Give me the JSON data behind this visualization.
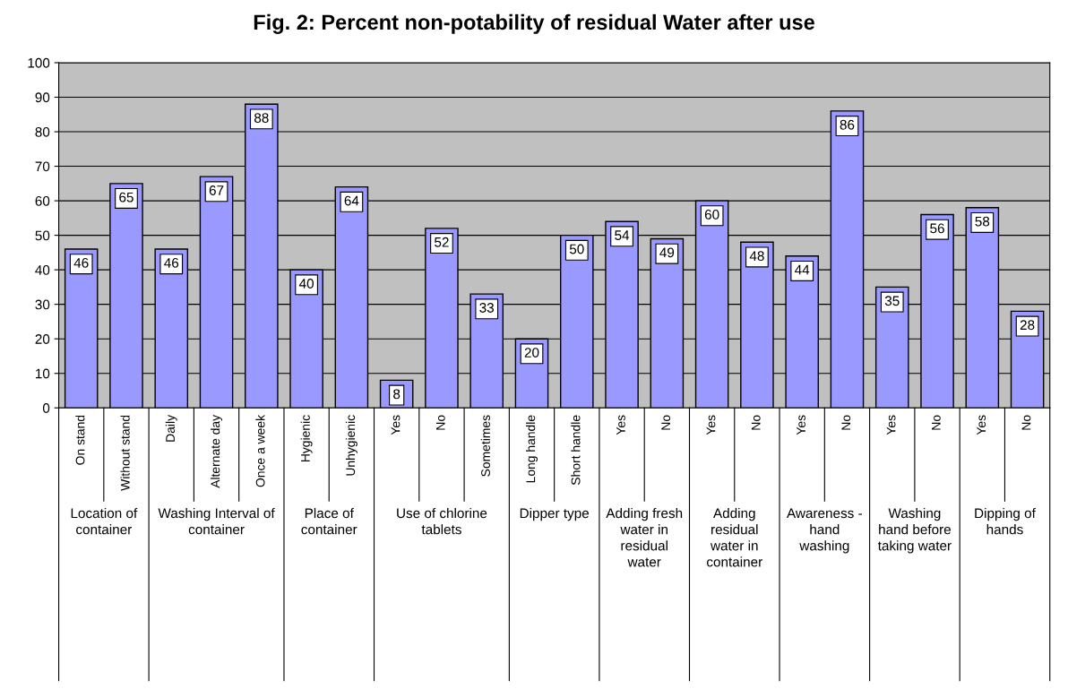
{
  "chart_data": {
    "type": "bar",
    "title": "Fig. 2: Percent non-potability of residual Water after use",
    "categories": [
      "On stand",
      "Without stand",
      "Daily",
      "Alternate day",
      "Once a week",
      "Hygienic",
      "Unhygienic",
      "Yes",
      "No",
      "Sometimes",
      "Long handle",
      "Short handle",
      "Yes",
      "No",
      "Yes",
      "No",
      "Yes",
      "No",
      "Yes",
      "No",
      "Yes",
      "No"
    ],
    "values": [
      46,
      65,
      46,
      67,
      88,
      40,
      64,
      8,
      52,
      33,
      20,
      50,
      54,
      49,
      60,
      48,
      44,
      86,
      35,
      56,
      58,
      28
    ],
    "color": "#9999ff",
    "ylim": [
      0,
      100
    ],
    "yticks": [
      0,
      10,
      20,
      30,
      40,
      50,
      60,
      70,
      80,
      90,
      100
    ],
    "grid": "y",
    "data_labels": true,
    "annotations": [
      "Location of\ncontainer",
      "Washing Interval of\ncontainer",
      "Place of\ncontainer",
      "Use of chlorine\ntablets",
      "Dipper type",
      "Adding fresh\nwater in\nresidual\nwater",
      "Adding\nresidual\nwater in\ncontainer",
      "Awareness -\nhand\nwashing",
      "Washing\nhand before\ntaking water",
      "Dipping of\nhands"
    ]
  }
}
